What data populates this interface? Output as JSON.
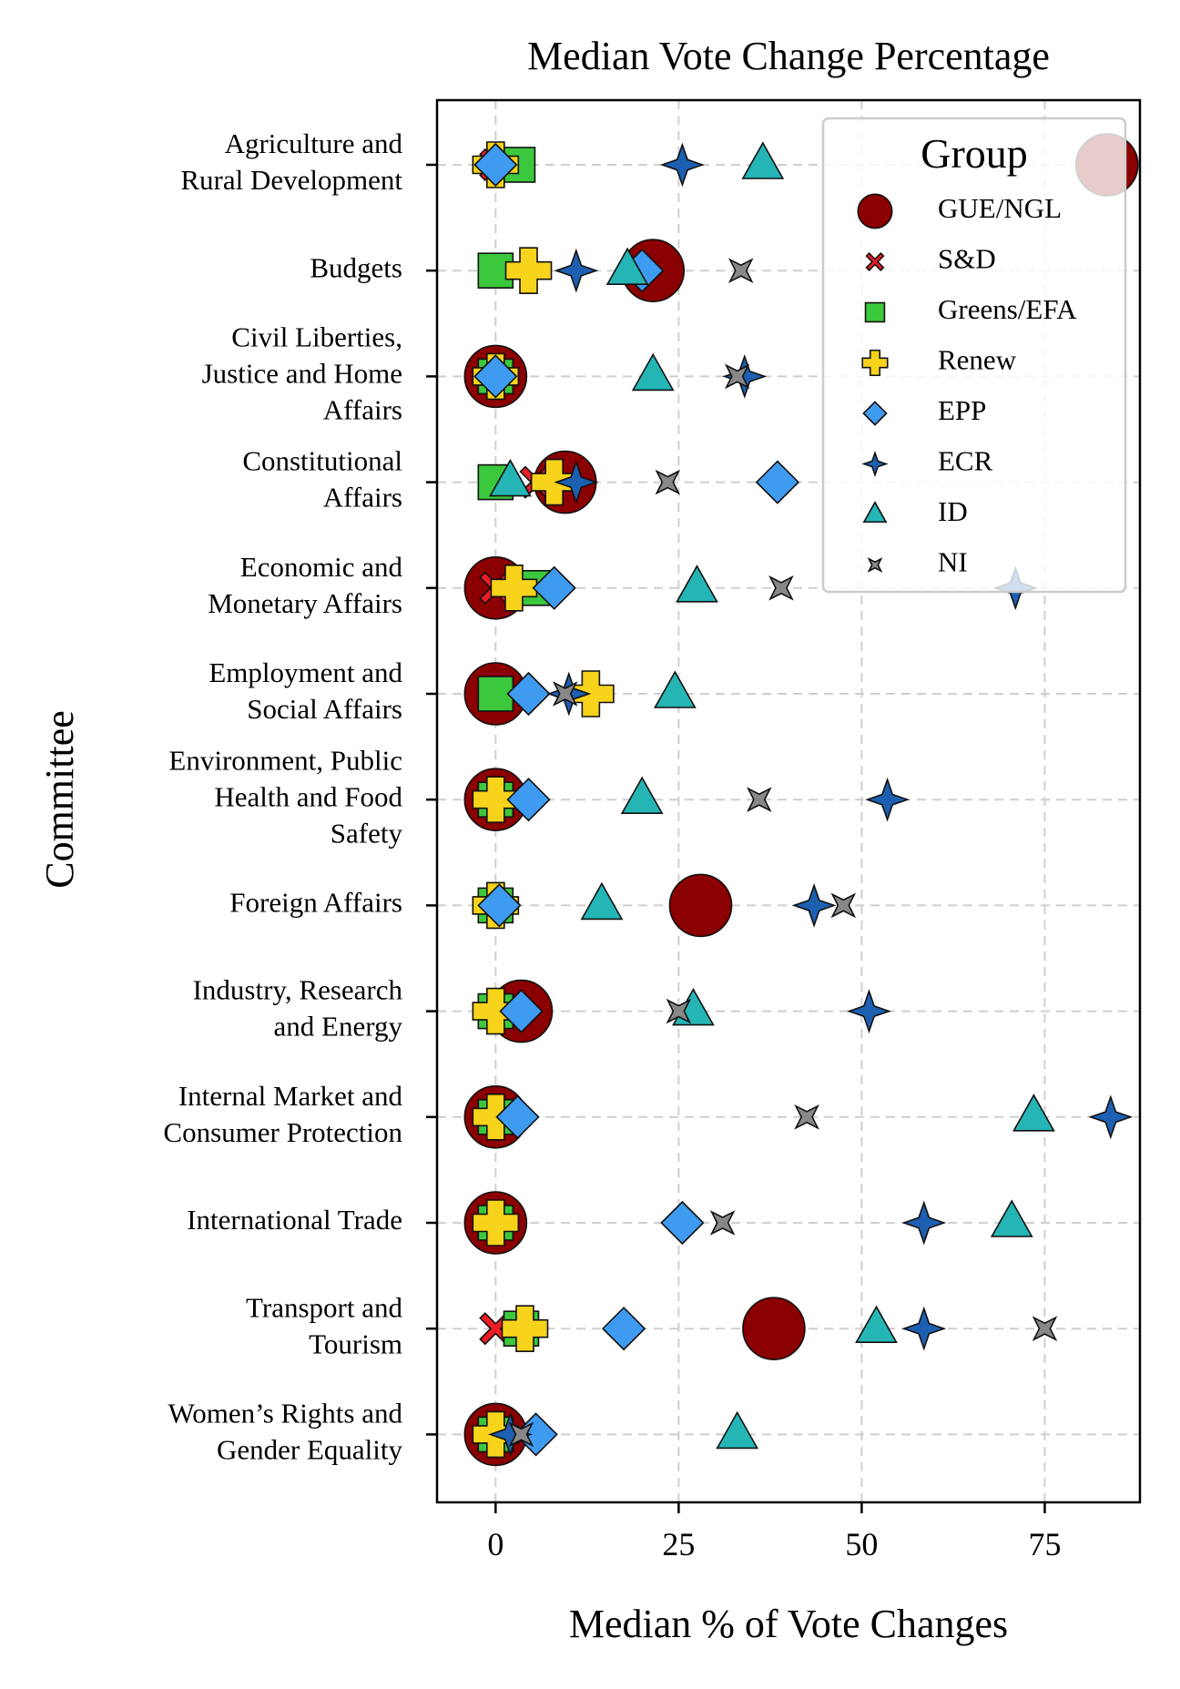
{
  "chart_data": {
    "type": "scatter",
    "title": "Median Vote Change Percentage",
    "xlabel": "Median % of Vote Changes",
    "ylabel": "Committee",
    "xlim": [
      -8,
      88
    ],
    "xticks": [
      0,
      25,
      50,
      75
    ],
    "grid": true,
    "legend": {
      "title": "Group",
      "position": "upper-right"
    },
    "categories": [
      [
        "Agriculture and",
        "Rural Development"
      ],
      [
        "Budgets"
      ],
      [
        "Civil Liberties,",
        "Justice and Home",
        "Affairs"
      ],
      [
        "Constitutional",
        "Affairs"
      ],
      [
        "Economic and",
        "Monetary Affairs"
      ],
      [
        "Employment and",
        "Social Affairs"
      ],
      [
        "Environment, Public",
        "Health and Food",
        "Safety"
      ],
      [
        "Foreign Affairs"
      ],
      [
        "Industry, Research",
        "and Energy"
      ],
      [
        "Internal Market and",
        "Consumer Protection"
      ],
      [
        "International Trade"
      ],
      [
        "Transport and",
        "Tourism"
      ],
      [
        "Women’s Rights and",
        "Gender Equality"
      ]
    ],
    "series": [
      {
        "name": "GUE/NGL",
        "marker": "circle",
        "color": "#8b0000",
        "values": [
          83.5,
          21.5,
          0,
          9.5,
          0,
          0,
          0,
          28,
          3.5,
          0,
          0,
          38,
          0
        ]
      },
      {
        "name": "S&D",
        "marker": "x",
        "color": "#ee1c25",
        "values": [
          0,
          0,
          0,
          5.5,
          0,
          0,
          0,
          0,
          0,
          0,
          0,
          0,
          0
        ]
      },
      {
        "name": "Greens/EFA",
        "marker": "square",
        "color": "#3cc83c",
        "values": [
          3,
          0,
          0,
          0,
          5.5,
          0,
          0,
          0,
          0,
          0,
          0,
          3.5,
          0
        ]
      },
      {
        "name": "Renew",
        "marker": "plus",
        "color": "#f7d31b",
        "values": [
          0,
          4.5,
          0,
          8,
          2.5,
          13,
          0,
          0,
          0,
          0,
          0,
          4,
          0
        ]
      },
      {
        "name": "EPP",
        "marker": "diamond",
        "color": "#3f9bf0",
        "values": [
          0,
          20,
          0,
          38.5,
          8,
          4.5,
          4.5,
          0.5,
          3.5,
          3,
          25.5,
          17.5,
          5.5
        ]
      },
      {
        "name": "ECR",
        "marker": "star4",
        "color": "#1d5fb0",
        "values": [
          25.5,
          11,
          34,
          11,
          71,
          10,
          53.5,
          43.5,
          51,
          84,
          58.5,
          58.5,
          2
        ]
      },
      {
        "name": "ID",
        "marker": "triangle",
        "color": "#25b5b5",
        "values": [
          36.5,
          18,
          21.5,
          2,
          27.5,
          24.5,
          20,
          14.5,
          27,
          73.5,
          70.5,
          52,
          33
        ]
      },
      {
        "name": "NI",
        "marker": "star4-square",
        "color": "#888888",
        "values": [
          null,
          33.5,
          33,
          23.5,
          39,
          9.5,
          36,
          47.5,
          25,
          42.5,
          31,
          75,
          3.5
        ]
      }
    ]
  }
}
